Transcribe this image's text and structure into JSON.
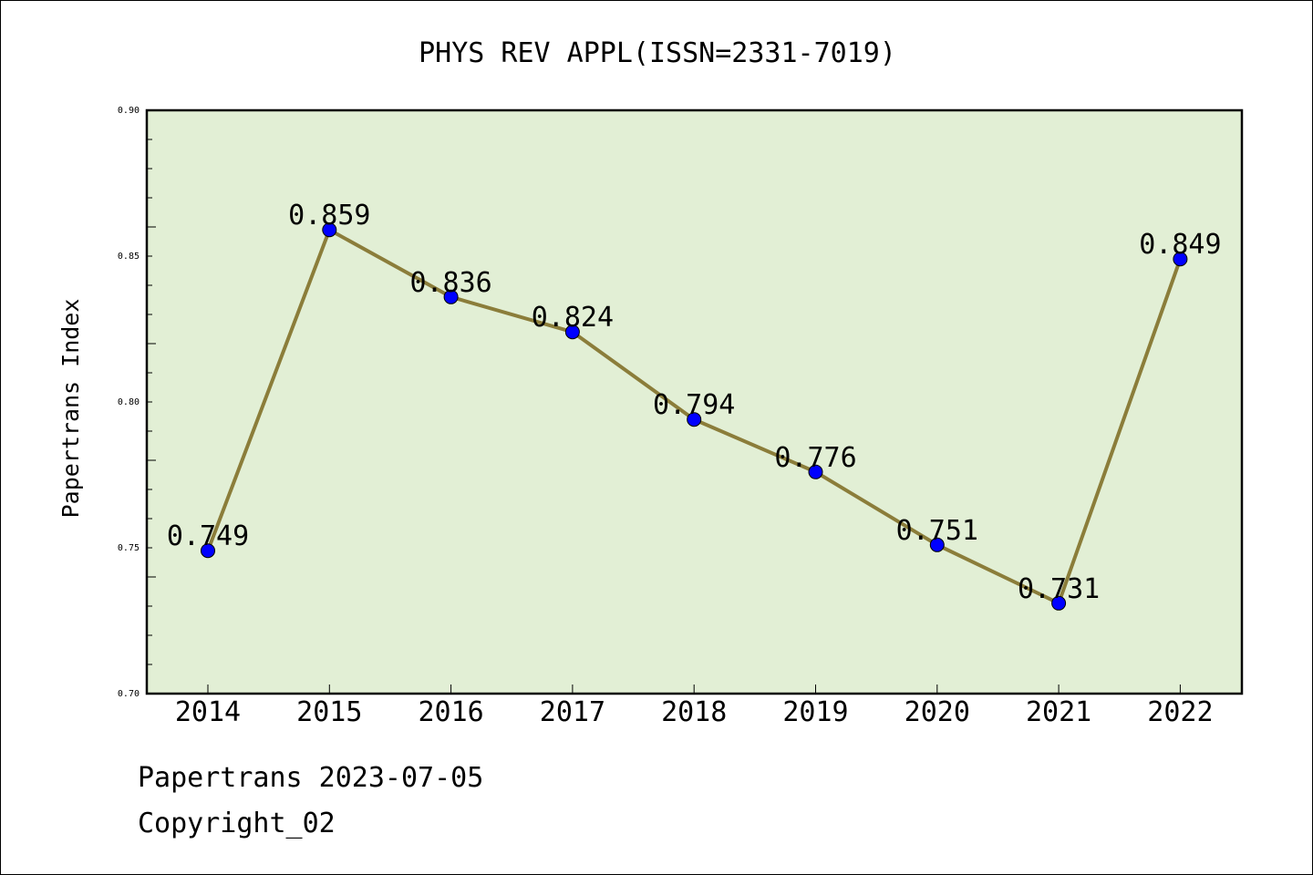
{
  "chart_data": {
    "type": "line",
    "title": "PHYS REV APPL(ISSN=2331-7019)",
    "ylabel": "Papertrans Index",
    "xlabel": "",
    "categories": [
      "2014",
      "2015",
      "2016",
      "2017",
      "2018",
      "2019",
      "2020",
      "2021",
      "2022"
    ],
    "values": [
      0.749,
      0.859,
      0.836,
      0.824,
      0.794,
      0.776,
      0.751,
      0.731,
      0.849
    ],
    "data_labels": [
      "0.749",
      "0.859",
      "0.836",
      "0.824",
      "0.794",
      "0.776",
      "0.751",
      "0.731",
      "0.849"
    ],
    "ylim": [
      0.7,
      0.9
    ],
    "yticks": [
      0.7,
      0.75,
      0.8,
      0.85,
      0.9
    ],
    "ytick_labels": [
      "0.70",
      "0.75",
      "0.80",
      "0.85",
      "0.90"
    ],
    "grid": false,
    "colors": {
      "line": "#8b7d3a",
      "marker": "#0000ff",
      "plot_background": "#e2efd5"
    }
  },
  "footer": {
    "line1": "Papertrans 2023-07-05",
    "line2": "Copyright_02"
  }
}
